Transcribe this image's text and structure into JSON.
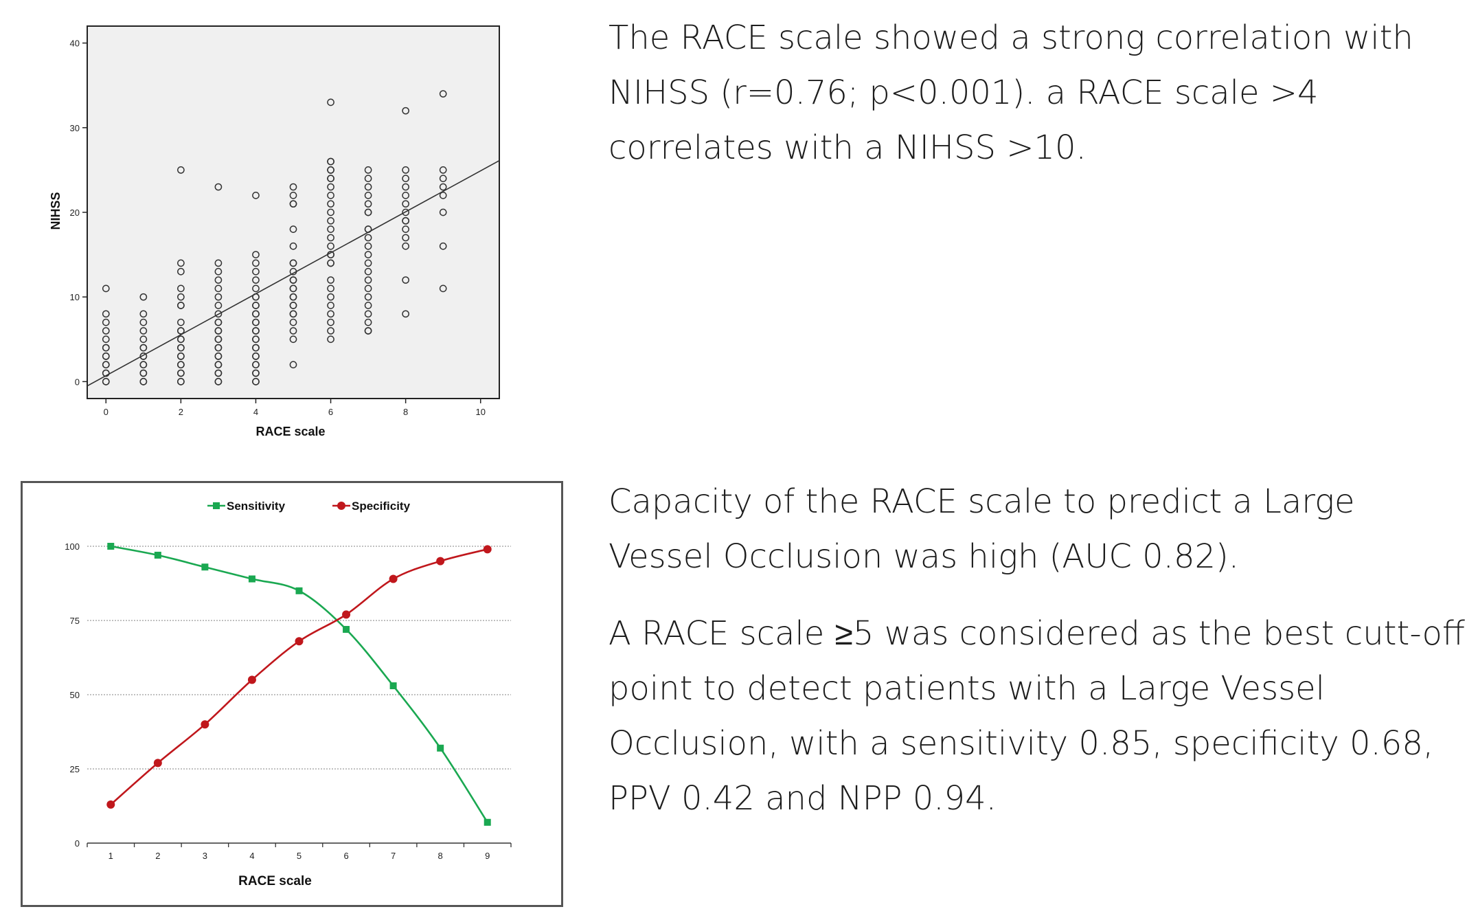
{
  "scatter": {
    "chart_data": {
      "type": "scatter",
      "xlabel": "RACE scale",
      "ylabel": "NIHSS",
      "xlim": [
        -0.5,
        10.5
      ],
      "ylim": [
        -2,
        42
      ],
      "xticks": [
        0,
        2,
        4,
        6,
        8,
        10
      ],
      "yticks": [
        0,
        10,
        20,
        30,
        40
      ],
      "grid": false,
      "regression_line": {
        "intercept": 0.7,
        "slope": 2.42
      },
      "points": [
        {
          "x": 0,
          "y": [
            0,
            0,
            1,
            1,
            2,
            2,
            3,
            3,
            4,
            4,
            5,
            6,
            7,
            8,
            11
          ]
        },
        {
          "x": 1,
          "y": [
            0,
            0,
            1,
            1,
            2,
            2,
            3,
            3,
            4,
            4,
            5,
            6,
            7,
            8,
            10
          ]
        },
        {
          "x": 2,
          "y": [
            0,
            0,
            1,
            1,
            2,
            2,
            3,
            3,
            4,
            4,
            5,
            5,
            6,
            6,
            7,
            9,
            9,
            10,
            11,
            13,
            14,
            25
          ]
        },
        {
          "x": 3,
          "y": [
            0,
            0,
            1,
            1,
            2,
            2,
            3,
            3,
            4,
            4,
            5,
            5,
            6,
            6,
            7,
            7,
            8,
            9,
            10,
            11,
            12,
            13,
            14,
            23
          ]
        },
        {
          "x": 4,
          "y": [
            0,
            0,
            1,
            1,
            2,
            2,
            3,
            3,
            4,
            4,
            5,
            5,
            6,
            6,
            7,
            7,
            8,
            8,
            9,
            9,
            10,
            10,
            11,
            12,
            13,
            14,
            15,
            22
          ]
        },
        {
          "x": 5,
          "y": [
            2,
            5,
            6,
            7,
            8,
            8,
            9,
            9,
            10,
            10,
            11,
            11,
            12,
            12,
            13,
            14,
            14,
            16,
            18,
            21,
            21,
            22,
            23
          ]
        },
        {
          "x": 6,
          "y": [
            5,
            6,
            7,
            8,
            9,
            10,
            11,
            12,
            14,
            14,
            15,
            15,
            16,
            17,
            18,
            19,
            20,
            21,
            22,
            23,
            24,
            24,
            25,
            25,
            26,
            26,
            33
          ]
        },
        {
          "x": 7,
          "y": [
            6,
            6,
            7,
            8,
            9,
            10,
            11,
            12,
            13,
            14,
            15,
            16,
            17,
            18,
            18,
            20,
            20,
            21,
            22,
            23,
            24,
            25
          ]
        },
        {
          "x": 8,
          "y": [
            8,
            12,
            16,
            17,
            18,
            19,
            19,
            20,
            21,
            22,
            23,
            24,
            25,
            32
          ]
        },
        {
          "x": 9,
          "y": [
            11,
            16,
            20,
            22,
            23,
            24,
            25,
            34
          ]
        }
      ]
    }
  },
  "roc": {
    "chart_data": {
      "type": "line",
      "xlabel": "RACE scale",
      "ylabel": "",
      "categories": [
        1,
        2,
        3,
        4,
        5,
        6,
        7,
        8,
        9
      ],
      "ylim": [
        0,
        100
      ],
      "yticks": [
        0,
        25,
        50,
        75,
        100
      ],
      "grid": true,
      "legend_position": "top",
      "series": [
        {
          "name": "Sensitivity",
          "color": "#1aa851",
          "marker": "square",
          "values": [
            100,
            97,
            93,
            89,
            85,
            72,
            53,
            32,
            7
          ]
        },
        {
          "name": "Specificity",
          "color": "#c0171c",
          "marker": "circle",
          "values": [
            13,
            27,
            40,
            55,
            68,
            77,
            89,
            95,
            99
          ]
        }
      ]
    }
  },
  "text": {
    "scatter_paragraph": "The RACE scale showed a strong correlation with NIHSS (r=0.76; p<0.001). a RACE scale >4 correlates with a NIHSS >10.",
    "roc_paragraph_1": "Capacity of the RACE scale to predict a Large Vessel Occlusion was high (AUC 0.82).",
    "roc_paragraph_2": "A RACE scale ≥5 was considered as the best cutt-off point to detect patients with a Large Vessel Occlusion, with a sensitivity 0.85, specificity 0.68, PPV 0.42 and NPP 0.94."
  }
}
